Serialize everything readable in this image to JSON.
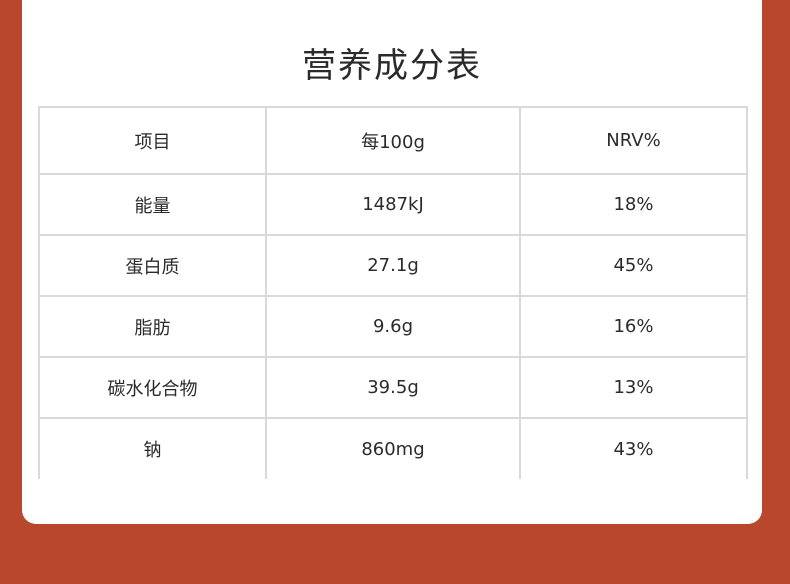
{
  "title": "营养成分表",
  "table": {
    "headers": [
      "项目",
      "每100g",
      "NRV%"
    ],
    "rows": [
      [
        "能量",
        "1487kJ",
        "18%"
      ],
      [
        "蛋白质",
        "27.1g",
        "45%"
      ],
      [
        "脂肪",
        "9.6g",
        "16%"
      ],
      [
        "碳水化合物",
        "39.5g",
        "13%"
      ],
      [
        "钠",
        "860mg",
        "43%"
      ]
    ]
  }
}
